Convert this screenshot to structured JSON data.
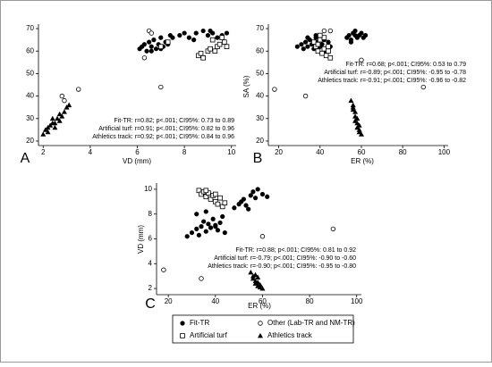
{
  "chart_data": [
    {
      "type": "scatter",
      "panel_label": "A",
      "x_label": "VD (mm)",
      "xlim": [
        1.8,
        10.2
      ],
      "ylim": [
        18,
        72
      ],
      "xticks": [
        2,
        4,
        6,
        8,
        10
      ],
      "yticks": [
        20,
        30,
        40,
        50,
        60,
        70
      ],
      "annotations": [
        "Fit-TR: r=0.82; p<.001; CI95%: 0.73 to 0.89",
        "Artificial turf: r=0.91; p<.001; CI95%: 0.82 to 0.96",
        "Athletics track: r=0.92; p<.001; CI95%: 0.84 to 0.96"
      ],
      "series": [
        {
          "name": "Fit-TR",
          "marker": "circle",
          "color": "#000000",
          "x": [
            6.1,
            6.3,
            6.4,
            6.5,
            6.6,
            6.7,
            6.8,
            6.9,
            7.0,
            7.1,
            7.2,
            7.3,
            7.4,
            6.2,
            6.6,
            7.0,
            7.5,
            7.8,
            8.0,
            8.2,
            8.5,
            8.8,
            9.0,
            9.2,
            9.4,
            9.6,
            9.8,
            8.4,
            9.1
          ],
          "values": [
            61,
            63,
            60,
            64,
            62,
            65,
            61,
            63,
            66,
            62,
            64,
            63,
            67,
            62,
            60,
            61,
            66,
            67,
            68,
            66,
            68,
            69,
            67,
            68,
            66,
            67,
            68,
            65,
            69
          ]
        },
        {
          "name": "Artificial turf",
          "marker": "square",
          "color": "#000000",
          "x": [
            8.6,
            8.8,
            9.0,
            9.1,
            9.3,
            9.4,
            9.5,
            9.7,
            9.8,
            8.7,
            9.2,
            9.6,
            7.3,
            7.0
          ],
          "values": [
            58,
            57,
            60,
            61,
            60,
            62,
            63,
            64,
            62,
            59,
            65,
            66,
            64,
            62
          ]
        },
        {
          "name": "Other (Lab-TR and NM-TR)",
          "marker": "open-circle",
          "color": "#000000",
          "x": [
            6.5,
            6.6,
            6.3,
            7.0,
            3.5,
            2.8,
            2.9
          ],
          "values": [
            69,
            68,
            57,
            44,
            43,
            40,
            38
          ]
        },
        {
          "name": "Athletics track",
          "marker": "triangle",
          "color": "#000000",
          "x": [
            2.0,
            2.1,
            2.2,
            2.3,
            2.4,
            2.5,
            2.6,
            2.7,
            2.8,
            2.9,
            3.0,
            3.1,
            2.5,
            2.2,
            2.7,
            2.4
          ],
          "values": [
            23,
            25,
            24,
            27,
            28,
            26,
            30,
            29,
            31,
            33,
            35,
            36,
            28,
            26,
            32,
            30
          ]
        }
      ]
    },
    {
      "type": "scatter",
      "panel_label": "B",
      "x_label": "ER (%)",
      "y_label": "SA (%)",
      "xlim": [
        15,
        102
      ],
      "ylim": [
        18,
        72
      ],
      "xticks": [
        20,
        40,
        60,
        80,
        100
      ],
      "yticks": [
        20,
        30,
        40,
        50,
        60,
        70
      ],
      "annotations": [
        "Fit-TR: r=0.68; p<.001; CI95%: 0.53 to 0.79",
        "Artificial turf: r=-0.89; p<.001; CI95%: -0.95 to -0.78",
        "Athletics track: r=-0.91; p<.001; CI95%: -0.96 to -0.82"
      ],
      "series": [
        {
          "name": "Fit-TR",
          "marker": "circle",
          "color": "#000000",
          "x": [
            29,
            31,
            32,
            33,
            34,
            35,
            36,
            37,
            38,
            39,
            40,
            41,
            42,
            43,
            44,
            45,
            34,
            38,
            53,
            54,
            55,
            56,
            57,
            58,
            59,
            60,
            61,
            62,
            57,
            55
          ],
          "values": [
            62,
            63,
            61,
            64,
            62,
            65,
            63,
            61,
            66,
            64,
            62,
            63,
            65,
            60,
            64,
            62,
            66,
            67,
            66,
            67,
            65,
            68,
            67,
            66,
            67,
            68,
            66,
            67,
            69,
            64
          ]
        },
        {
          "name": "Artificial turf",
          "marker": "square",
          "color": "#000000",
          "x": [
            37,
            38,
            39,
            40,
            41,
            42,
            43,
            44,
            45,
            39,
            42,
            44,
            40
          ],
          "values": [
            64,
            62,
            60,
            65,
            59,
            61,
            58,
            60,
            57,
            63,
            66,
            62,
            67
          ]
        },
        {
          "name": "Other (Lab-TR and NM-TR)",
          "marker": "open-circle",
          "color": "#000000",
          "x": [
            18,
            33,
            42,
            45,
            60,
            90
          ],
          "values": [
            43,
            40,
            69,
            69,
            56,
            44
          ]
        },
        {
          "name": "Athletics track",
          "marker": "triangle",
          "color": "#000000",
          "x": [
            55,
            56,
            56,
            57,
            57,
            58,
            58,
            59,
            59,
            60,
            57,
            58,
            56,
            59
          ],
          "values": [
            38,
            36,
            34,
            33,
            31,
            30,
            28,
            27,
            25,
            23,
            29,
            26,
            35,
            24
          ]
        }
      ]
    },
    {
      "type": "scatter",
      "panel_label": "C",
      "x_label": "ER (%)",
      "y_label": "VD (mm)",
      "xlim": [
        15,
        102
      ],
      "ylim": [
        1.5,
        10.5
      ],
      "xticks": [
        20,
        40,
        60,
        80,
        100
      ],
      "yticks": [
        2,
        4,
        6,
        8,
        10
      ],
      "annotations": [
        "Fit-TR: r=0.88; p<.001; CI95%: 0.81 to 0.92",
        "Artificial turf: r=-0.79; p<.001; CI95%: -0.90 to -0.60",
        "Athletics track: r=-0.90; p<.001; CI95%: -0.95 to -0.80"
      ],
      "series": [
        {
          "name": "Fit-TR",
          "marker": "circle",
          "color": "#000000",
          "x": [
            28,
            30,
            32,
            33,
            34,
            35,
            36,
            37,
            38,
            39,
            40,
            41,
            42,
            43,
            44,
            32,
            36,
            40,
            48,
            50,
            51,
            52,
            53,
            55,
            56,
            57,
            58,
            60,
            62,
            54
          ],
          "values": [
            6.2,
            6.5,
            6.8,
            6.3,
            7.0,
            7.4,
            6.6,
            7.2,
            6.9,
            7.6,
            7.1,
            6.7,
            7.3,
            7.8,
            6.5,
            8.0,
            8.2,
            7.0,
            8.5,
            8.8,
            9.0,
            9.2,
            8.7,
            9.5,
            9.8,
            9.3,
            10.0,
            9.6,
            9.4,
            8.4
          ]
        },
        {
          "name": "Artificial turf",
          "marker": "square",
          "color": "#000000",
          "x": [
            33,
            34,
            35,
            36,
            37,
            38,
            39,
            40,
            41,
            42,
            43,
            44,
            36,
            40
          ],
          "values": [
            9.9,
            9.6,
            9.8,
            9.4,
            9.7,
            9.2,
            9.5,
            9.0,
            8.8,
            9.3,
            8.6,
            8.9,
            9.9,
            9.6
          ]
        },
        {
          "name": "Other (Lab-TR and NM-TR)",
          "marker": "open-circle",
          "color": "#000000",
          "x": [
            18,
            34,
            60,
            90
          ],
          "values": [
            3.5,
            2.8,
            6.2,
            6.8
          ]
        },
        {
          "name": "Athletics track",
          "marker": "triangle",
          "color": "#000000",
          "x": [
            55,
            56,
            56,
            57,
            57,
            58,
            58,
            59,
            59,
            60,
            57,
            58
          ],
          "values": [
            3.3,
            3.0,
            2.8,
            3.1,
            2.6,
            2.5,
            2.9,
            2.3,
            2.1,
            2.0,
            2.4,
            2.2
          ]
        }
      ]
    }
  ]
}
